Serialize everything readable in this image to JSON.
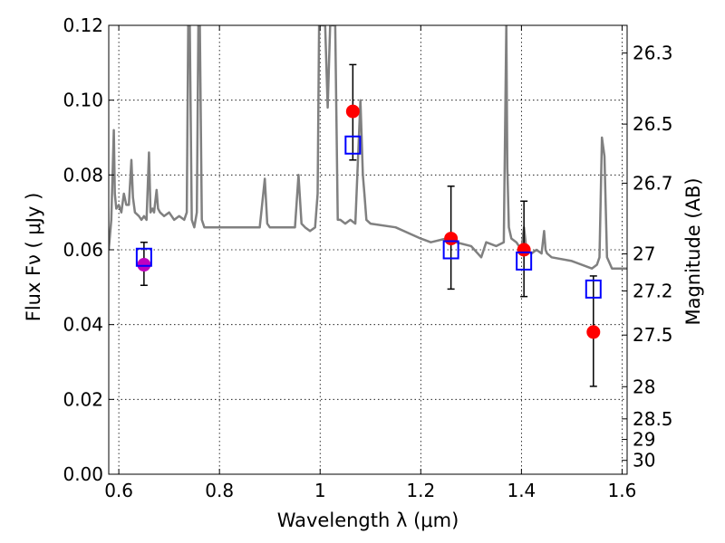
{
  "chart_data": {
    "type": "scatter",
    "title": "",
    "xlabel": "Wavelength  λ (μm)",
    "ylabel": "Flux  Fν  ( μJy )",
    "ylabel_right": "Magnitude (AB)",
    "xlim": [
      0.58,
      1.61
    ],
    "ylim": [
      0.0,
      0.12
    ],
    "grid": true,
    "x_ticks": [
      0.6,
      0.8,
      1.0,
      1.2,
      1.4,
      1.6
    ],
    "x_tick_labels": [
      "0.6",
      "0.8",
      "1",
      "1.2",
      "1.4",
      "1.6"
    ],
    "y_ticks": [
      0.0,
      0.02,
      0.04,
      0.06,
      0.08,
      0.1,
      0.12
    ],
    "y_tick_labels": [
      "0.00",
      "0.02",
      "0.04",
      "0.06",
      "0.08",
      "0.10",
      "0.12"
    ],
    "right_ticks": [
      {
        "label": "26.3",
        "flux": 0.1126
      },
      {
        "label": "26.5",
        "flux": 0.0936
      },
      {
        "label": "26.7",
        "flux": 0.0778
      },
      {
        "label": "27",
        "flux": 0.0589
      },
      {
        "label": "27.2",
        "flux": 0.049
      },
      {
        "label": "27.5",
        "flux": 0.0372
      },
      {
        "label": "28",
        "flux": 0.0234
      },
      {
        "label": "28.5",
        "flux": 0.0148
      },
      {
        "label": "29",
        "flux": 0.0093
      },
      {
        "label": "30",
        "flux": 0.0037
      }
    ],
    "series": [
      {
        "kind": "line",
        "color": "#808080",
        "x": [
          0.58,
          0.585,
          0.59,
          0.592,
          0.595,
          0.6,
          0.605,
          0.61,
          0.615,
          0.62,
          0.625,
          0.628,
          0.632,
          0.64,
          0.645,
          0.65,
          0.655,
          0.66,
          0.663,
          0.667,
          0.67,
          0.675,
          0.678,
          0.682,
          0.69,
          0.7,
          0.71,
          0.72,
          0.73,
          0.735,
          0.738,
          0.741,
          0.745,
          0.75,
          0.755,
          0.758,
          0.761,
          0.765,
          0.77,
          0.8,
          0.85,
          0.88,
          0.89,
          0.895,
          0.9,
          0.95,
          0.957,
          0.963,
          0.97,
          0.98,
          0.99,
          0.995,
          0.998,
          1.0,
          1.01,
          1.015,
          1.02,
          1.03,
          1.035,
          1.04,
          1.05,
          1.06,
          1.07,
          1.08,
          1.085,
          1.088,
          1.092,
          1.1,
          1.15,
          1.2,
          1.22,
          1.25,
          1.27,
          1.3,
          1.32,
          1.33,
          1.35,
          1.365,
          1.37,
          1.372,
          1.375,
          1.38,
          1.39,
          1.4,
          1.405,
          1.41,
          1.42,
          1.43,
          1.44,
          1.445,
          1.448,
          1.451,
          1.46,
          1.5,
          1.54,
          1.55,
          1.555,
          1.56,
          1.565,
          1.57,
          1.58,
          1.6,
          1.61
        ],
        "y": [
          0.06,
          0.068,
          0.092,
          0.075,
          0.071,
          0.072,
          0.07,
          0.075,
          0.072,
          0.072,
          0.084,
          0.074,
          0.07,
          0.069,
          0.068,
          0.069,
          0.068,
          0.086,
          0.07,
          0.071,
          0.07,
          0.076,
          0.071,
          0.07,
          0.069,
          0.07,
          0.068,
          0.069,
          0.068,
          0.07,
          0.12,
          0.12,
          0.068,
          0.066,
          0.07,
          0.12,
          0.12,
          0.068,
          0.066,
          0.066,
          0.066,
          0.066,
          0.079,
          0.067,
          0.066,
          0.066,
          0.08,
          0.067,
          0.066,
          0.065,
          0.066,
          0.075,
          0.12,
          0.12,
          0.12,
          0.098,
          0.12,
          0.12,
          0.068,
          0.068,
          0.067,
          0.068,
          0.067,
          0.1,
          0.08,
          0.075,
          0.068,
          0.067,
          0.066,
          0.063,
          0.062,
          0.063,
          0.062,
          0.061,
          0.058,
          0.062,
          0.061,
          0.062,
          0.12,
          0.082,
          0.066,
          0.063,
          0.062,
          0.06,
          0.066,
          0.06,
          0.059,
          0.06,
          0.059,
          0.065,
          0.06,
          0.059,
          0.058,
          0.057,
          0.055,
          0.056,
          0.058,
          0.09,
          0.085,
          0.058,
          0.055,
          0.055,
          0.055
        ]
      },
      {
        "kind": "points",
        "marker": "circle",
        "name": "",
        "color": "#ff0000",
        "x": [
          1.065,
          1.26,
          1.405,
          1.543
        ],
        "y": [
          0.097,
          0.063,
          0.06,
          0.038
        ],
        "y_err_low": [
          0.084,
          0.0495,
          0.0475,
          0.0235
        ],
        "y_err_high": [
          0.1095,
          0.077,
          0.073,
          0.053
        ]
      },
      {
        "kind": "points",
        "marker": "circle",
        "name": "",
        "color": "#bf00bf",
        "x": [
          0.65
        ],
        "y": [
          0.056
        ],
        "y_err_low": [
          0.0505
        ],
        "y_err_high": [
          0.062
        ]
      },
      {
        "kind": "points",
        "marker": "square-open",
        "name": "",
        "color": "#0000ff",
        "x": [
          0.65,
          1.065,
          1.26,
          1.405,
          1.543
        ],
        "y": [
          0.058,
          0.088,
          0.06,
          0.057,
          0.0495
        ]
      }
    ]
  }
}
